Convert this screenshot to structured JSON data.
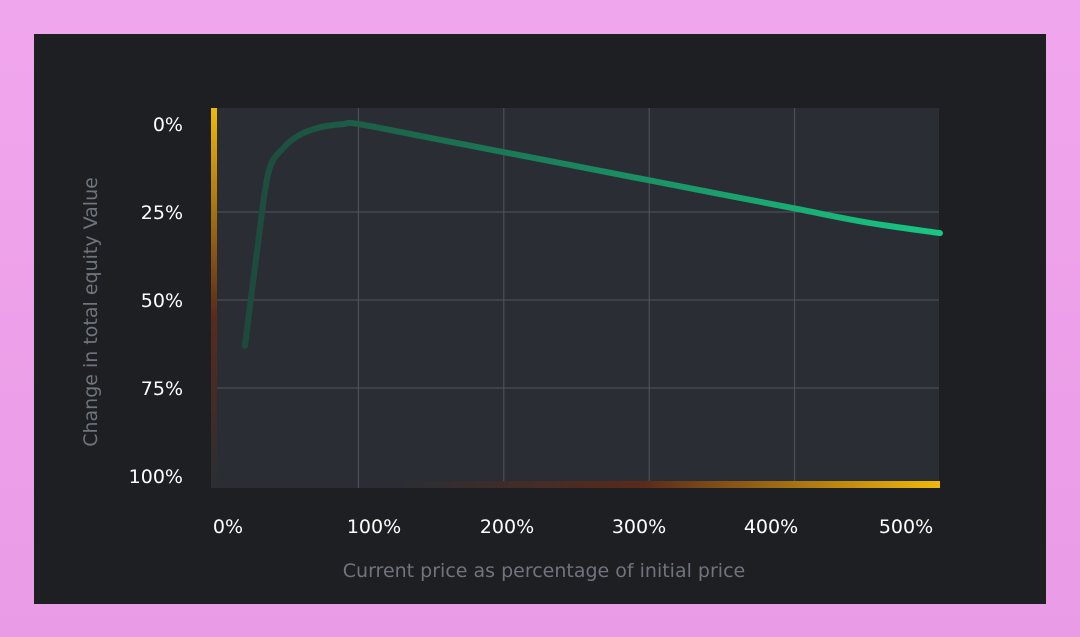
{
  "colors": {
    "page_background": "#ef9fea",
    "panel_background": "#1d1f23",
    "plot_background": "#2a2e34",
    "grid": "#50555d",
    "curve_start": "#1d4a3c",
    "curve_end": "#18c784",
    "axis_accent": "#f0b90b",
    "axis_accent_fade": "#5a2a1a",
    "axis_title": "#6f747d",
    "tick_text": "#ffffff"
  },
  "chart_data": {
    "type": "line",
    "title": "",
    "xlabel": "Current price as percentage of initial price",
    "ylabel": "Change in total equity Value",
    "xlim": [
      0,
      500
    ],
    "ylim": [
      0,
      100
    ],
    "y_inverted": true,
    "x_ticks": [
      "0%",
      "100%",
      "200%",
      "300%",
      "400%",
      "500%"
    ],
    "y_ticks": [
      "0%",
      "25%",
      "50%",
      "75%",
      "100%"
    ],
    "grid": true,
    "series": [
      {
        "x": [
          22,
          30,
          38,
          48,
          60,
          75,
          90,
          100,
          150,
          200,
          250,
          300,
          350,
          400,
          450,
          500
        ],
        "y": [
          63,
          37,
          14,
          7,
          3,
          0.8,
          0,
          0,
          4,
          8,
          12,
          16,
          20,
          24,
          28,
          31
        ]
      }
    ]
  }
}
